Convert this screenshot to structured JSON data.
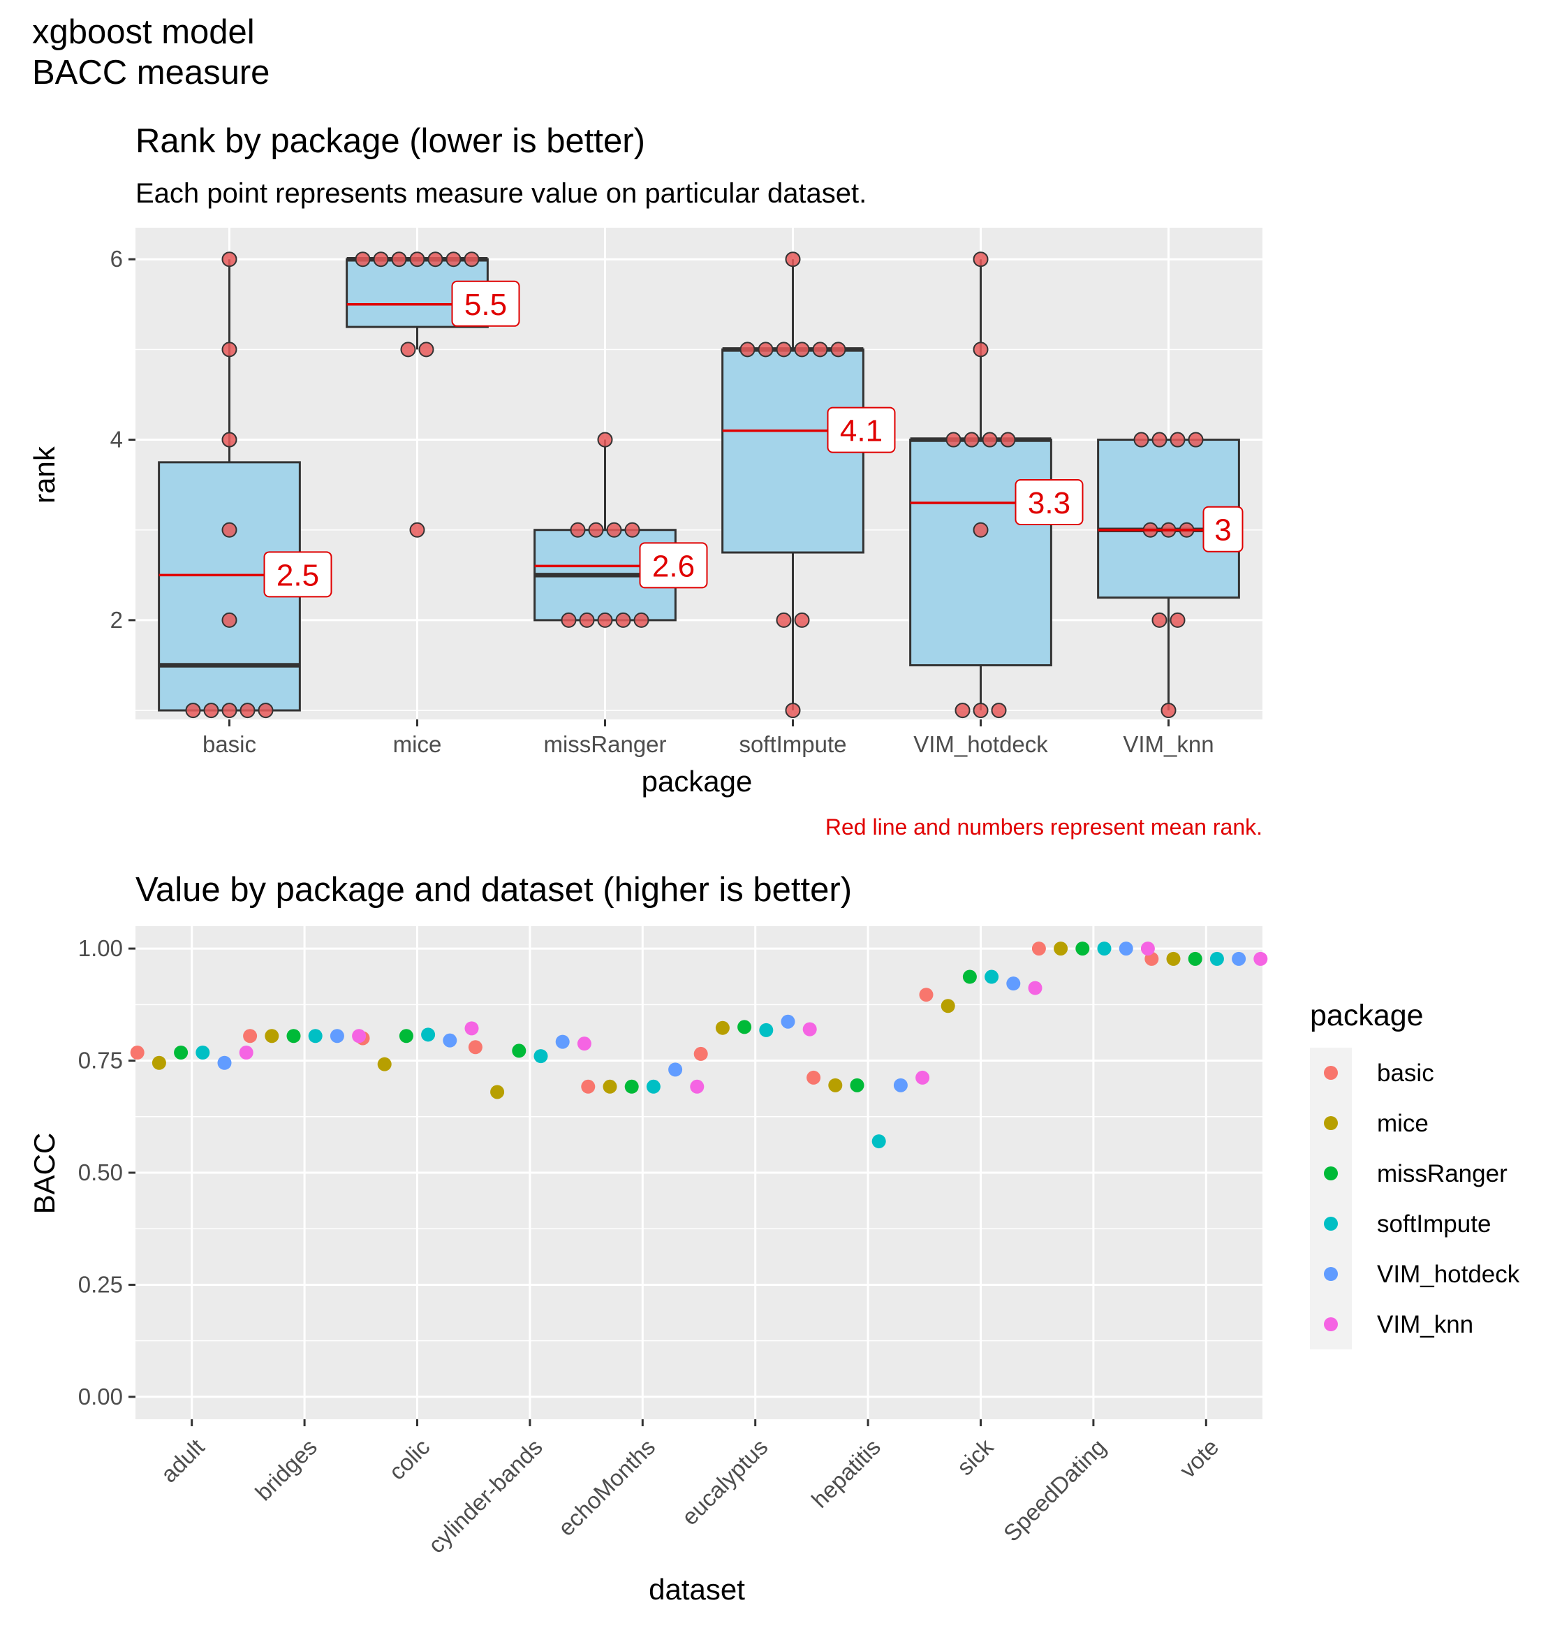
{
  "header": {
    "line1": "xgboost model",
    "line2": "BACC measure"
  },
  "chart_data": [
    {
      "type": "boxplot",
      "title": "Rank by package (lower is better)",
      "subtitle": "Each point represents measure value on particular dataset.",
      "xlabel": "package",
      "ylabel": "rank",
      "caption": "Red line and numbers represent mean rank.",
      "ylim": [
        0.9,
        6.35
      ],
      "yticks": [
        2,
        4,
        6
      ],
      "grid": true,
      "categories": [
        "basic",
        "mice",
        "missRanger",
        "softImpute",
        "VIM_hotdeck",
        "VIM_knn"
      ],
      "boxes": [
        {
          "package": "basic",
          "q1": 1,
          "median": 1.5,
          "q3": 3.75,
          "whisker_low": 1,
          "whisker_high": 6,
          "mean": 2.5,
          "mean_label": "2.5",
          "points": [
            1,
            1,
            1,
            1,
            1,
            2,
            3,
            4,
            5,
            6
          ]
        },
        {
          "package": "mice",
          "q1": 5.25,
          "median": 6,
          "q3": 6,
          "whisker_low": 5,
          "whisker_high": 6,
          "mean": 5.5,
          "mean_label": "5.5",
          "points": [
            3,
            5,
            5,
            6,
            6,
            6,
            6,
            6,
            6,
            6
          ]
        },
        {
          "package": "missRanger",
          "q1": 2,
          "median": 2.5,
          "q3": 3,
          "whisker_low": 2,
          "whisker_high": 4,
          "mean": 2.6,
          "mean_label": "2.6",
          "points": [
            2,
            2,
            2,
            2,
            2,
            3,
            3,
            3,
            3,
            4
          ]
        },
        {
          "package": "softImpute",
          "q1": 2.75,
          "median": 5,
          "q3": 5,
          "whisker_low": 1,
          "whisker_high": 6,
          "mean": 4.1,
          "mean_label": "4.1",
          "points": [
            1,
            2,
            2,
            5,
            5,
            5,
            5,
            5,
            5,
            6
          ]
        },
        {
          "package": "VIM_hotdeck",
          "q1": 1.5,
          "median": 4,
          "q3": 4,
          "whisker_low": 1,
          "whisker_high": 6,
          "mean": 3.3,
          "mean_label": "3.3",
          "points": [
            1,
            1,
            1,
            3,
            4,
            4,
            4,
            4,
            5,
            6
          ]
        },
        {
          "package": "VIM_knn",
          "q1": 2.25,
          "median": 3,
          "q3": 4,
          "whisker_low": 1,
          "whisker_high": 4,
          "mean": 3,
          "mean_label": "3",
          "points": [
            1,
            2,
            2,
            3,
            3,
            3,
            4,
            4,
            4,
            4
          ]
        }
      ]
    },
    {
      "type": "scatter",
      "title": "Value by package and dataset (higher is better)",
      "xlabel": "dataset",
      "ylabel": "BACC",
      "ylim": [
        -0.05,
        1.05
      ],
      "yticks": [
        "0.00",
        "0.25",
        "0.50",
        "0.75",
        "1.00"
      ],
      "grid": true,
      "legend_title": "package",
      "legend_position": "right",
      "categories": [
        "adult",
        "bridges",
        "colic",
        "cylinder-bands",
        "echoMonths",
        "eucalyptus",
        "hepatitis",
        "sick",
        "SpeedDating",
        "vote"
      ],
      "series": [
        {
          "name": "basic",
          "color": "#F8766D",
          "values": [
            0.768,
            0.805,
            0.8,
            0.78,
            0.692,
            0.765,
            0.712,
            0.897,
            1.0,
            0.977
          ]
        },
        {
          "name": "mice",
          "color": "#B79F00",
          "values": [
            0.745,
            0.805,
            0.742,
            0.68,
            0.692,
            0.823,
            0.695,
            0.872,
            1.0,
            0.977
          ]
        },
        {
          "name": "missRanger",
          "color": "#00BA38",
          "values": [
            0.768,
            0.805,
            0.805,
            0.772,
            0.692,
            0.825,
            0.695,
            0.937,
            1.0,
            0.977
          ]
        },
        {
          "name": "softImpute",
          "color": "#00BFC4",
          "values": [
            0.768,
            0.805,
            0.808,
            0.76,
            0.692,
            0.818,
            0.57,
            0.937,
            1.0,
            0.977
          ]
        },
        {
          "name": "VIM_hotdeck",
          "color": "#619CFF",
          "values": [
            0.745,
            0.805,
            0.795,
            0.792,
            0.73,
            0.837,
            0.695,
            0.922,
            1.0,
            0.977
          ]
        },
        {
          "name": "VIM_knn",
          "color": "#F564E3",
          "values": [
            0.768,
            0.805,
            0.822,
            0.788,
            0.692,
            0.82,
            0.712,
            0.912,
            1.0,
            0.977
          ]
        }
      ]
    }
  ]
}
